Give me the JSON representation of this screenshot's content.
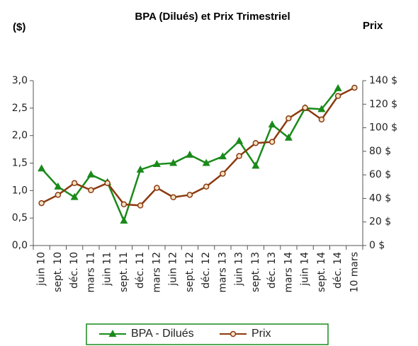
{
  "chart_data": {
    "type": "line",
    "title": "BPA (Dilués) et Prix Trimestriel",
    "y_label": "($)",
    "y2_label": "Prix",
    "categories": [
      "juin 10",
      "sept. 10",
      "déc. 10",
      "mars 11",
      "juin 11",
      "sept. 11",
      "déc. 11",
      "mars 12",
      "juin 12",
      "sept. 12",
      "déc. 12",
      "mars 13",
      "juin 13",
      "sept. 13",
      "déc. 13",
      "mars 14",
      "juin 14",
      "sept. 14",
      "déc. 14",
      "10 mars"
    ],
    "series": [
      {
        "name": "BPA - Dilués",
        "color": "#1a8a1a",
        "marker": "triangle",
        "values": [
          1.4,
          1.07,
          0.88,
          1.29,
          1.15,
          0.45,
          1.38,
          1.48,
          1.5,
          1.65,
          1.5,
          1.62,
          1.9,
          1.45,
          2.2,
          1.96,
          2.5,
          2.48,
          2.86,
          null
        ]
      },
      {
        "name": "Prix",
        "color": "#8b3a0f",
        "marker": "circle",
        "axis": "y2",
        "values": [
          36,
          43,
          53,
          47,
          53,
          35,
          34,
          49,
          41,
          43,
          50,
          61,
          76,
          87,
          88,
          108,
          117,
          107,
          127,
          134
        ]
      }
    ],
    "ylim": [
      0,
      3
    ],
    "yticks": [
      {
        "value": 0,
        "label": "0,0"
      },
      {
        "value": 0.5,
        "label": "0,5"
      },
      {
        "value": 1,
        "label": "1,0"
      },
      {
        "value": 1.5,
        "label": "1,5"
      },
      {
        "value": 2,
        "label": "2,0"
      },
      {
        "value": 2.5,
        "label": "2,5"
      },
      {
        "value": 3,
        "label": "3,0"
      }
    ],
    "y2lim": [
      0,
      140
    ],
    "y2ticks": [
      {
        "value": 0,
        "label": "0 $"
      },
      {
        "value": 20,
        "label": "20 $"
      },
      {
        "value": 40,
        "label": "40 $"
      },
      {
        "value": 60,
        "label": "60 $"
      },
      {
        "value": 80,
        "label": "80 $"
      },
      {
        "value": 100,
        "label": "100 $"
      },
      {
        "value": 120,
        "label": "120 $"
      },
      {
        "value": 140,
        "label": "140 $"
      }
    ],
    "grid": false,
    "legend": "bottom"
  }
}
